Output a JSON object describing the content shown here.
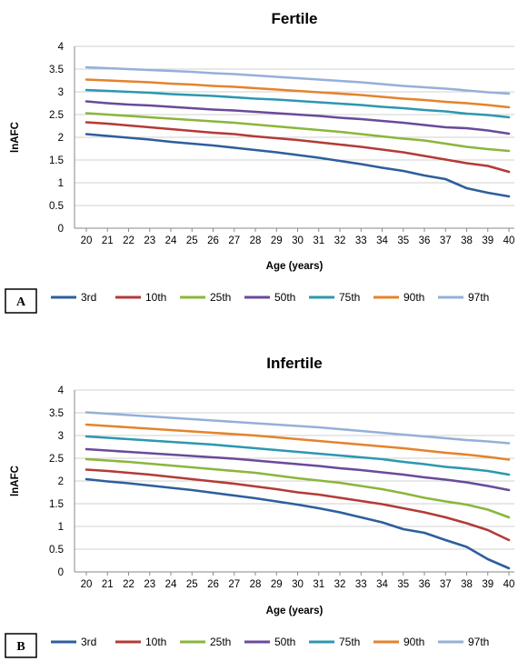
{
  "colors": {
    "3rd": "#2E5E9C",
    "10th": "#B43A38",
    "25th": "#8BB63B",
    "50th": "#6A4A9A",
    "75th": "#2C98B0",
    "90th": "#E5832C",
    "97th": "#95B0D9"
  },
  "chart_data": [
    {
      "type": "line",
      "panel_label": "A",
      "title": "Fertile",
      "xlabel": "Age (years)",
      "ylabel": "lnAFC",
      "x": [
        20,
        21,
        22,
        23,
        24,
        25,
        26,
        27,
        28,
        29,
        30,
        31,
        32,
        33,
        34,
        35,
        36,
        37,
        38,
        39,
        40
      ],
      "ylim": [
        0,
        4
      ],
      "yticks": [
        "0",
        "0.5",
        "1",
        "1.5",
        "2",
        "2.5",
        "3",
        "3.5",
        "4"
      ],
      "grid": true,
      "legend": "bottom",
      "series": [
        {
          "name": "3rd",
          "values": [
            2.07,
            2.03,
            1.99,
            1.95,
            1.9,
            1.86,
            1.82,
            1.77,
            1.72,
            1.67,
            1.61,
            1.55,
            1.48,
            1.41,
            1.33,
            1.26,
            1.16,
            1.08,
            0.88,
            0.78,
            0.7
          ]
        },
        {
          "name": "10th",
          "values": [
            2.33,
            2.3,
            2.26,
            2.22,
            2.18,
            2.14,
            2.1,
            2.07,
            2.02,
            1.98,
            1.94,
            1.89,
            1.84,
            1.79,
            1.73,
            1.67,
            1.59,
            1.51,
            1.43,
            1.37,
            1.24
          ]
        },
        {
          "name": "25th",
          "values": [
            2.53,
            2.5,
            2.47,
            2.44,
            2.41,
            2.38,
            2.35,
            2.32,
            2.28,
            2.24,
            2.2,
            2.16,
            2.12,
            2.07,
            2.02,
            1.97,
            1.93,
            1.86,
            1.79,
            1.74,
            1.7
          ]
        },
        {
          "name": "50th",
          "values": [
            2.79,
            2.75,
            2.72,
            2.7,
            2.67,
            2.64,
            2.61,
            2.59,
            2.56,
            2.53,
            2.5,
            2.47,
            2.43,
            2.4,
            2.36,
            2.32,
            2.27,
            2.22,
            2.2,
            2.15,
            2.08
          ]
        },
        {
          "name": "75th",
          "values": [
            3.04,
            3.02,
            3.0,
            2.98,
            2.95,
            2.93,
            2.91,
            2.88,
            2.85,
            2.83,
            2.8,
            2.77,
            2.74,
            2.71,
            2.67,
            2.64,
            2.6,
            2.57,
            2.52,
            2.49,
            2.44
          ]
        },
        {
          "name": "90th",
          "values": [
            3.27,
            3.25,
            3.23,
            3.21,
            3.18,
            3.16,
            3.13,
            3.11,
            3.08,
            3.05,
            3.02,
            2.99,
            2.96,
            2.93,
            2.89,
            2.85,
            2.82,
            2.78,
            2.75,
            2.71,
            2.66
          ]
        },
        {
          "name": "97th",
          "values": [
            3.54,
            3.52,
            3.5,
            3.48,
            3.46,
            3.44,
            3.41,
            3.39,
            3.36,
            3.33,
            3.3,
            3.27,
            3.24,
            3.21,
            3.17,
            3.13,
            3.1,
            3.07,
            3.03,
            2.99,
            2.96
          ]
        }
      ]
    },
    {
      "type": "line",
      "panel_label": "B",
      "title": "Infertile",
      "xlabel": "Age (years)",
      "ylabel": "lnAFC",
      "x": [
        20,
        21,
        22,
        23,
        24,
        25,
        26,
        27,
        28,
        29,
        30,
        31,
        32,
        33,
        34,
        35,
        36,
        37,
        38,
        39,
        40
      ],
      "ylim": [
        0,
        4
      ],
      "yticks": [
        "0",
        "0.5",
        "1",
        "1.5",
        "2",
        "2.5",
        "3",
        "3.5",
        "4"
      ],
      "grid": true,
      "legend": "bottom",
      "series": [
        {
          "name": "3rd",
          "values": [
            2.04,
            1.99,
            1.95,
            1.9,
            1.85,
            1.8,
            1.74,
            1.68,
            1.62,
            1.55,
            1.48,
            1.4,
            1.31,
            1.2,
            1.09,
            0.94,
            0.86,
            0.7,
            0.55,
            0.28,
            0.08
          ]
        },
        {
          "name": "10th",
          "values": [
            2.25,
            2.22,
            2.18,
            2.14,
            2.09,
            2.04,
            1.99,
            1.94,
            1.88,
            1.82,
            1.75,
            1.7,
            1.63,
            1.56,
            1.49,
            1.4,
            1.31,
            1.2,
            1.07,
            0.92,
            0.7
          ]
        },
        {
          "name": "25th",
          "values": [
            2.48,
            2.45,
            2.42,
            2.38,
            2.34,
            2.3,
            2.26,
            2.22,
            2.18,
            2.12,
            2.06,
            2.01,
            1.96,
            1.89,
            1.82,
            1.73,
            1.63,
            1.55,
            1.48,
            1.37,
            1.2
          ]
        },
        {
          "name": "50th",
          "values": [
            2.7,
            2.67,
            2.64,
            2.61,
            2.58,
            2.55,
            2.52,
            2.49,
            2.45,
            2.41,
            2.37,
            2.33,
            2.28,
            2.24,
            2.19,
            2.14,
            2.08,
            2.03,
            1.97,
            1.89,
            1.8
          ]
        },
        {
          "name": "75th",
          "values": [
            2.98,
            2.95,
            2.92,
            2.89,
            2.86,
            2.83,
            2.8,
            2.76,
            2.72,
            2.68,
            2.64,
            2.6,
            2.56,
            2.52,
            2.48,
            2.42,
            2.37,
            2.31,
            2.27,
            2.22,
            2.14
          ]
        },
        {
          "name": "90th",
          "values": [
            3.24,
            3.21,
            3.18,
            3.15,
            3.12,
            3.09,
            3.06,
            3.03,
            3.0,
            2.96,
            2.92,
            2.88,
            2.84,
            2.8,
            2.76,
            2.72,
            2.67,
            2.62,
            2.58,
            2.53,
            2.47
          ]
        },
        {
          "name": "97th",
          "values": [
            3.51,
            3.48,
            3.45,
            3.42,
            3.39,
            3.36,
            3.33,
            3.3,
            3.27,
            3.24,
            3.21,
            3.18,
            3.14,
            3.1,
            3.06,
            3.02,
            2.98,
            2.94,
            2.9,
            2.87,
            2.83
          ]
        }
      ]
    }
  ]
}
